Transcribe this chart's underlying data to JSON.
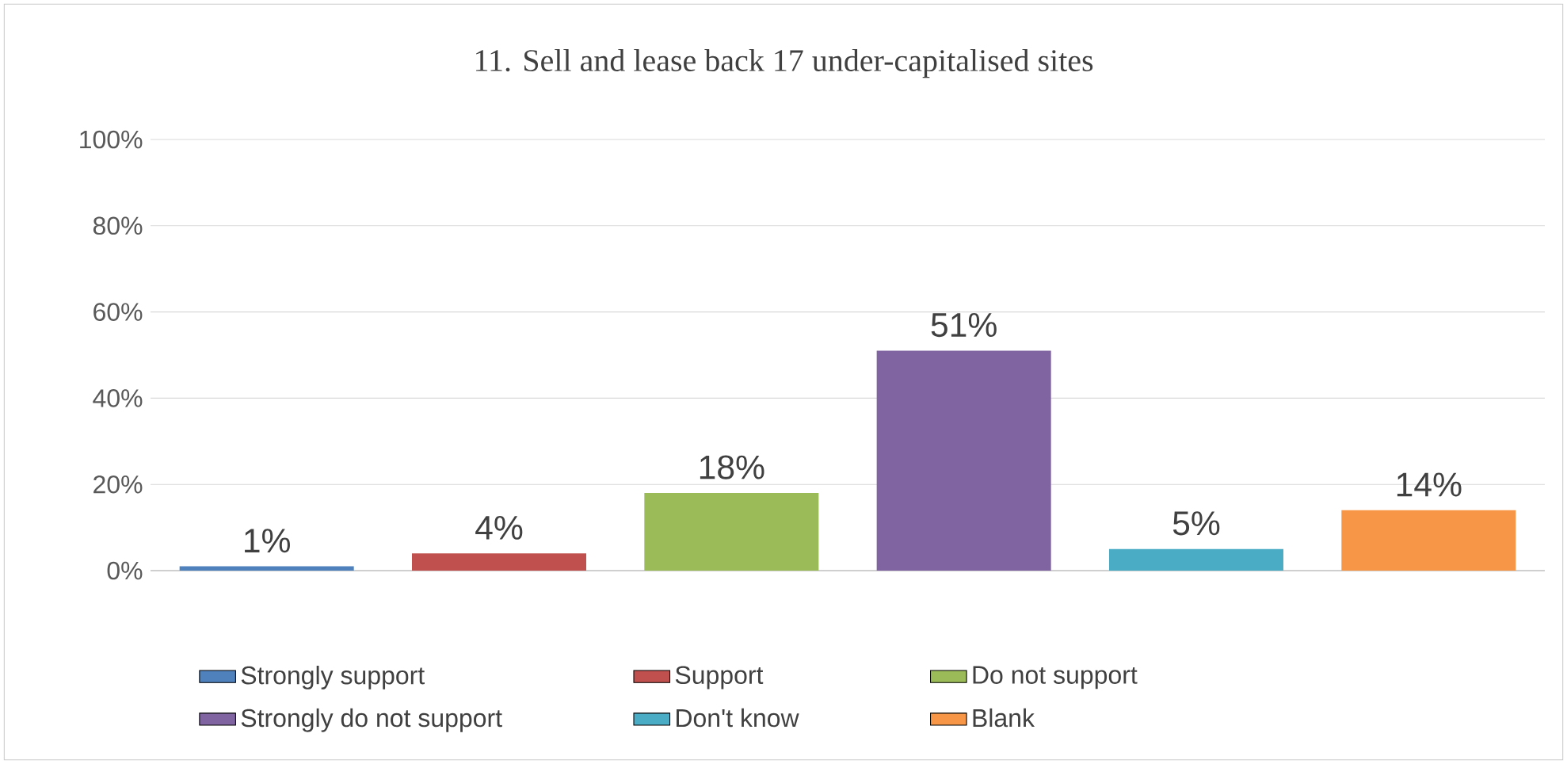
{
  "chart_data": {
    "type": "bar",
    "title": "11. Sell and lease back 17 under-capitalised sites",
    "categories": [
      null,
      null,
      null,
      null,
      null,
      null
    ],
    "series": [
      {
        "name": "Strongly support",
        "color": "#4f81bd",
        "values": [
          1,
          null,
          null,
          null,
          null,
          null
        ],
        "value_labels": [
          "1%",
          null,
          null,
          null,
          null,
          null
        ]
      },
      {
        "name": "Support",
        "color": "#c0504d",
        "values": [
          null,
          4,
          null,
          null,
          null,
          null
        ],
        "value_labels": [
          null,
          "4%",
          null,
          null,
          null,
          null
        ]
      },
      {
        "name": "Do not support",
        "color": "#9bbb59",
        "values": [
          null,
          null,
          18,
          null,
          null,
          null
        ],
        "value_labels": [
          null,
          null,
          "18%",
          null,
          null,
          null
        ]
      },
      {
        "name": "Strongly do not support",
        "color": "#8064a2",
        "values": [
          null,
          null,
          null,
          51,
          null,
          null
        ],
        "value_labels": [
          null,
          null,
          null,
          "51%",
          null,
          null
        ]
      },
      {
        "name": "Don't know",
        "color": "#4bacc6",
        "values": [
          null,
          null,
          null,
          null,
          5,
          null
        ],
        "value_labels": [
          null,
          null,
          null,
          null,
          "5%",
          null
        ]
      },
      {
        "name": "Blank",
        "color": "#f79646",
        "values": [
          null,
          null,
          null,
          null,
          null,
          14
        ],
        "value_labels": [
          null,
          null,
          null,
          null,
          null,
          "14%"
        ]
      }
    ],
    "ylim": [
      0,
      100
    ],
    "yticks": [
      {
        "value": 0,
        "label": "0%"
      },
      {
        "value": 20,
        "label": "20%"
      },
      {
        "value": 40,
        "label": "40%"
      },
      {
        "value": 60,
        "label": "60%"
      },
      {
        "value": 80,
        "label": "80%"
      },
      {
        "value": 100,
        "label": "100%"
      }
    ],
    "grid": "y",
    "legend": "bottom"
  }
}
